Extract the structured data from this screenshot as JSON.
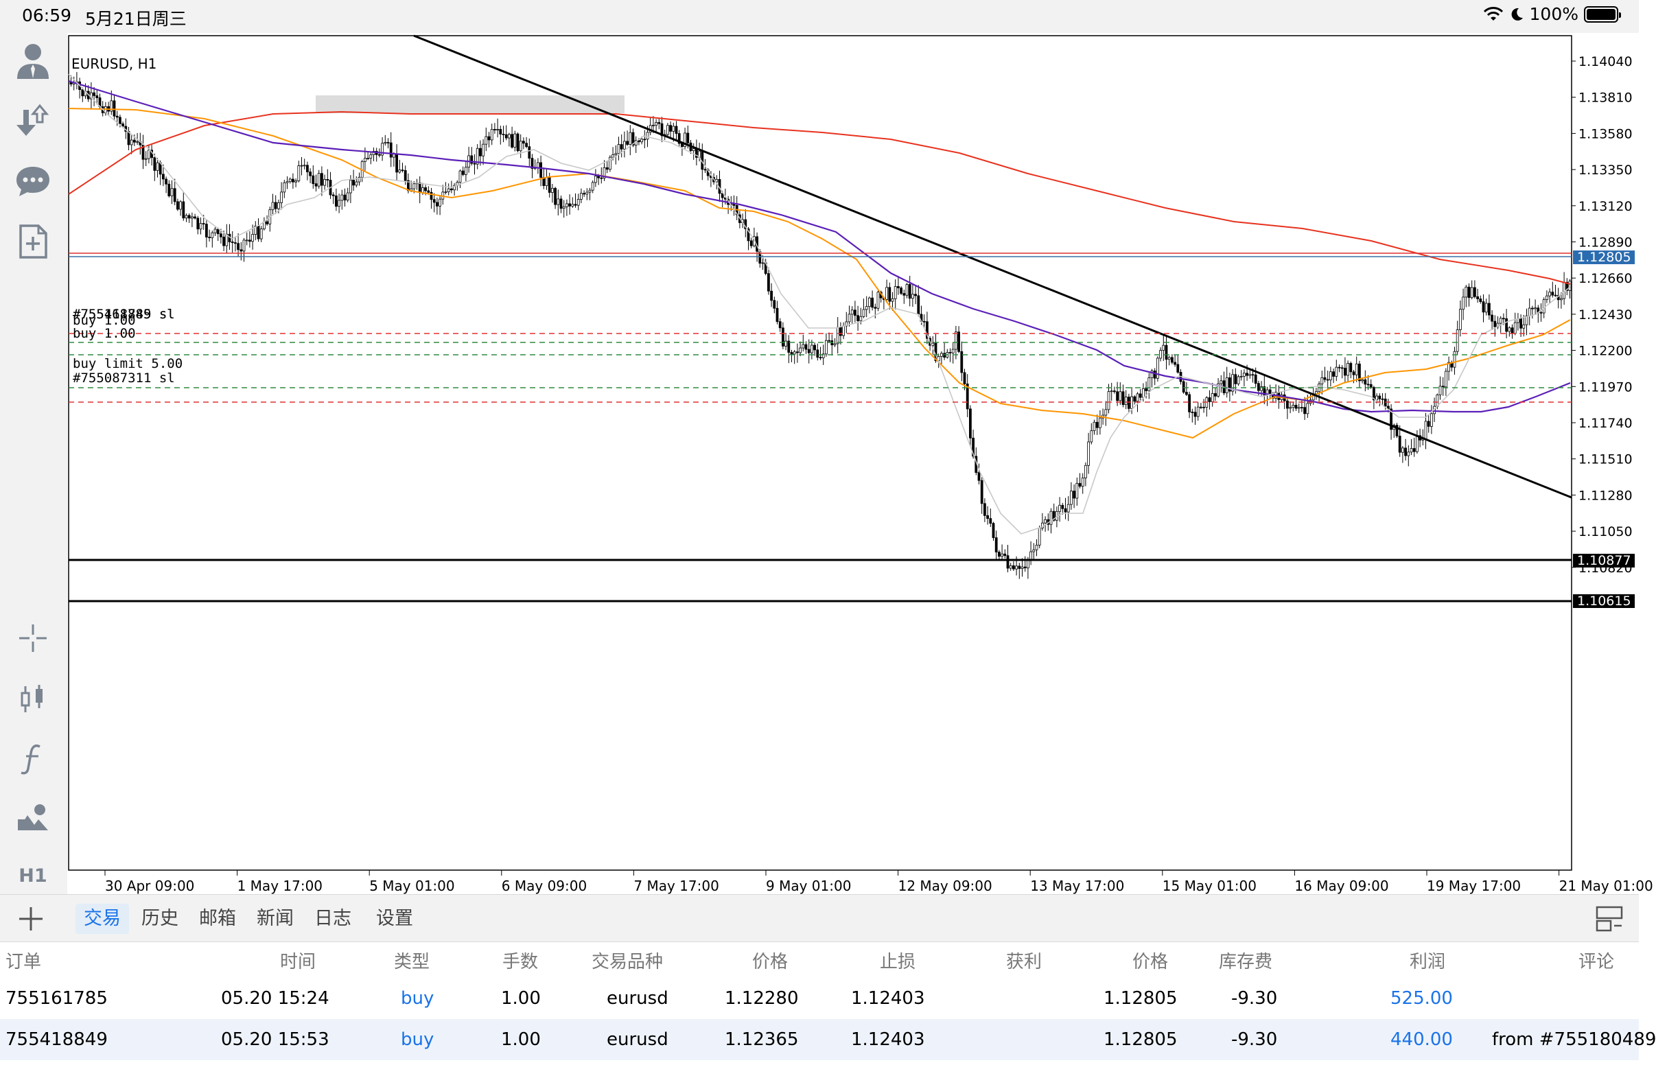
{
  "status_bar": {
    "time": "06:59",
    "date": "5月21日周三",
    "battery": "100%"
  },
  "toolbar": {
    "icons": [
      "account-icon",
      "trade-icon",
      "chat-icon",
      "new-order-icon",
      "crosshair-icon",
      "chart-type-icon",
      "indicators-icon",
      "objects-icon"
    ],
    "timeframe": "H1"
  },
  "chart": {
    "symbol_label": "EURUSD, H1",
    "price_axis": [
      "1.14040",
      "1.13810",
      "1.13580",
      "1.13350",
      "1.13120",
      "1.12890",
      "1.12660",
      "1.12430",
      "1.12200",
      "1.11970",
      "1.11740",
      "1.11510",
      "1.11280",
      "1.11050",
      "1.10820"
    ],
    "highlighted_prices": {
      "current": "1.12805",
      "horizontal_line": "1.10877",
      "bottom": "1.10615"
    },
    "time_axis": [
      "30 Apr 09:00",
      "1 May 17:00",
      "5 May 01:00",
      "6 May 09:00",
      "7 May 17:00",
      "9 May 01:00",
      "12 May 09:00",
      "13 May 17:00",
      "15 May 01:00",
      "16 May 09:00",
      "19 May 17:00",
      "21 May 01:00"
    ],
    "order_labels": {
      "sl_overlap": "#755418849 sl",
      "sl_overlap_back": "#755161785 sl",
      "buy1": "buy 1.00",
      "buy2": "buy 1.00",
      "buy_limit": "buy limit 5.00",
      "sl2": "#755087311 sl"
    },
    "colors": {
      "red_ma": "#e8321e",
      "orange_ma": "#ff9500",
      "purple_ma": "#5b1fb8",
      "gray_ma": "#c8c8c8",
      "bid_line": "#e03030",
      "ask_line": "#3a6ea5",
      "sl_line": "#e03030",
      "order_line": "#2e8b3e",
      "current_price_box": "#2b6cb0"
    }
  },
  "tabs": {
    "items": [
      "交易",
      "历史",
      "邮箱",
      "新闻",
      "日志",
      "设置"
    ],
    "active": "交易"
  },
  "orders": {
    "headers": [
      "订单",
      "时间",
      "类型",
      "手数",
      "交易品种",
      "价格",
      "止损",
      "获利",
      "价格",
      "库存费",
      "利润",
      "评论"
    ],
    "rows": [
      {
        "order": "755161785",
        "time": "05.20 15:24",
        "type": "buy",
        "volume": "1.00",
        "symbol": "eurusd",
        "open_price": "1.12280",
        "sl": "1.12403",
        "tp": "",
        "price": "1.12805",
        "swap": "-9.30",
        "profit": "525.00",
        "comment": ""
      },
      {
        "order": "755418849",
        "time": "05.20 15:53",
        "type": "buy",
        "volume": "1.00",
        "symbol": "eurusd",
        "open_price": "1.12365",
        "sl": "1.12403",
        "tp": "",
        "price": "1.12805",
        "swap": "-9.30",
        "profit": "440.00",
        "comment": "from #755180489"
      }
    ]
  }
}
